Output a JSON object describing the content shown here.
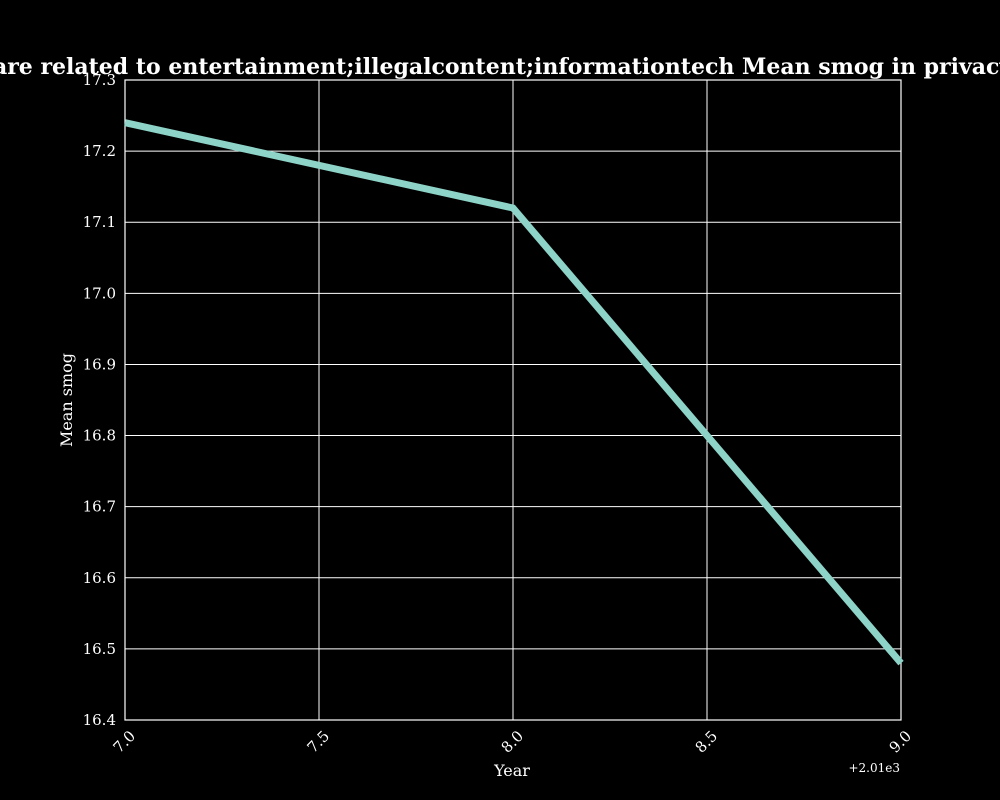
{
  "chart_data": {
    "type": "line",
    "title": "en categories are related to entertainment;illegalcontent;informationtech Mean smog in privacy policies by",
    "xlabel": "Year",
    "ylabel": "Mean smog",
    "x_offset_label": "+2.01e3",
    "xlim": [
      7.0,
      9.0
    ],
    "ylim": [
      16.4,
      17.3
    ],
    "x_ticks": [
      7.0,
      7.5,
      8.0,
      8.5,
      9.0
    ],
    "x_tick_labels": [
      "7.0",
      "7.5",
      "8.0",
      "8.5",
      "9.0"
    ],
    "y_ticks": [
      16.4,
      16.5,
      16.6,
      16.7,
      16.8,
      16.9,
      17.0,
      17.1,
      17.2,
      17.3
    ],
    "y_tick_labels": [
      "16.4",
      "16.5",
      "16.6",
      "16.7",
      "16.8",
      "16.9",
      "17.0",
      "17.1",
      "17.2",
      "17.3"
    ],
    "grid": true,
    "series": [
      {
        "x": [
          7.0,
          8.0,
          9.0
        ],
        "values": [
          17.24,
          17.12,
          16.48
        ],
        "color": "#8dd3c7"
      }
    ],
    "background": "#000000",
    "foreground": "#ffffff"
  }
}
